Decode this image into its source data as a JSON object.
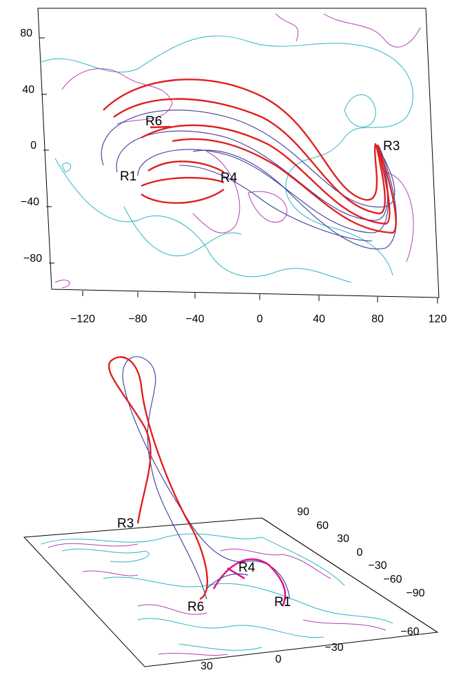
{
  "top_panel": {
    "y_ticks": [
      "80",
      "40",
      "0",
      "−40",
      "−80"
    ],
    "x_ticks": [
      "−120",
      "−80",
      "−40",
      "0",
      "40",
      "80",
      "120"
    ],
    "labels": [
      "R6",
      "R1",
      "R4",
      "R3"
    ]
  },
  "bottom_panel": {
    "right_ticks": [
      "90",
      "60",
      "30",
      "0",
      "−30",
      "−60",
      "−90"
    ],
    "bottom_ticks": [
      "30",
      "0",
      "−30",
      "−60"
    ],
    "labels": [
      "R3",
      "R4",
      "R6",
      "R1"
    ]
  }
}
